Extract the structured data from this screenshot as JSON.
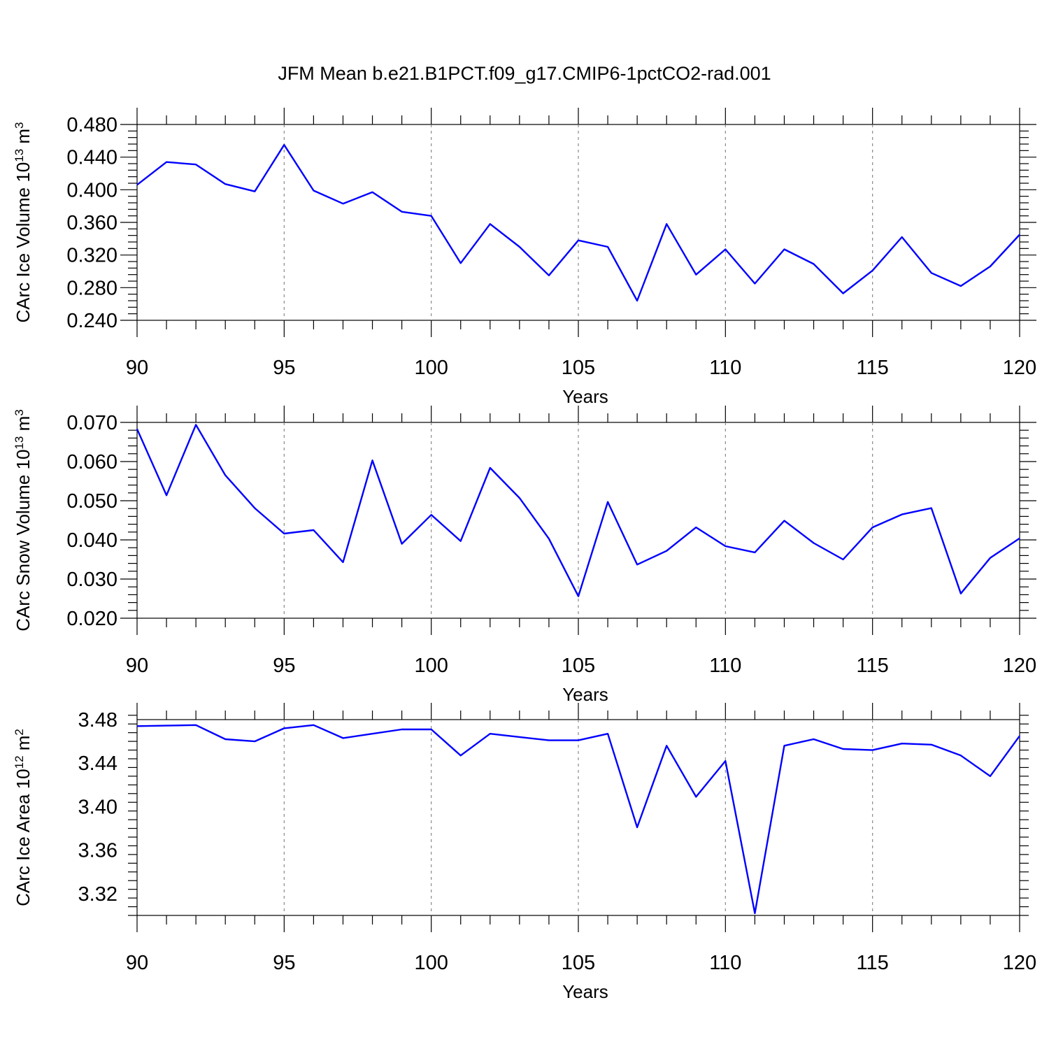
{
  "title": "JFM Mean b.e21.B1PCT.f09_g17.CMIP6-1pctCO2-rad.001",
  "chart_data": [
    {
      "type": "line",
      "ylabel": "CArc Ice Volume 10",
      "ylabel_exp": "13",
      "ylabel_unit": " m",
      "ylabel_unit_exp": "3",
      "xlabel": "Years",
      "xlim": [
        90,
        120
      ],
      "ylim": [
        0.24,
        0.48
      ],
      "x_ticks": [
        "90",
        "95",
        "100",
        "105",
        "110",
        "115",
        "120"
      ],
      "y_ticks": [
        "0.240",
        "0.280",
        "0.320",
        "0.360",
        "0.400",
        "0.440",
        "0.480"
      ],
      "color": "#0000ff",
      "x": [
        90,
        91,
        92,
        93,
        94,
        95,
        96,
        97,
        98,
        99,
        100,
        101,
        102,
        103,
        104,
        105,
        106,
        107,
        108,
        109,
        110,
        111,
        112,
        113,
        114,
        115,
        116,
        117,
        118,
        119,
        120
      ],
      "values": [
        0.406,
        0.434,
        0.431,
        0.407,
        0.398,
        0.455,
        0.399,
        0.383,
        0.397,
        0.373,
        0.368,
        0.31,
        0.358,
        0.33,
        0.295,
        0.338,
        0.33,
        0.264,
        0.358,
        0.296,
        0.327,
        0.285,
        0.327,
        0.309,
        0.273,
        0.301,
        0.342,
        0.298,
        0.282,
        0.306,
        0.345
      ]
    },
    {
      "type": "line",
      "ylabel": "CArc Snow Volume 10",
      "ylabel_exp": "13",
      "ylabel_unit": " m",
      "ylabel_unit_exp": "3",
      "xlabel": "Years",
      "xlim": [
        90,
        120
      ],
      "ylim": [
        0.02,
        0.07
      ],
      "x_ticks": [
        "90",
        "95",
        "100",
        "105",
        "110",
        "115",
        "120"
      ],
      "y_ticks": [
        "0.020",
        "0.030",
        "0.040",
        "0.050",
        "0.060",
        "0.070"
      ],
      "color": "#0000ff",
      "x": [
        90,
        91,
        92,
        93,
        94,
        95,
        96,
        97,
        98,
        99,
        100,
        101,
        102,
        103,
        104,
        105,
        106,
        107,
        108,
        109,
        110,
        111,
        112,
        113,
        114,
        115,
        116,
        117,
        118,
        119,
        120
      ],
      "values": [
        0.0683,
        0.0514,
        0.0694,
        0.0565,
        0.0481,
        0.0416,
        0.0425,
        0.0343,
        0.0603,
        0.039,
        0.0464,
        0.0397,
        0.0584,
        0.0507,
        0.0403,
        0.0256,
        0.0497,
        0.0337,
        0.0372,
        0.0432,
        0.0384,
        0.0368,
        0.0449,
        0.0392,
        0.035,
        0.0432,
        0.0465,
        0.0481,
        0.0263,
        0.0354,
        0.0404
      ]
    },
    {
      "type": "line",
      "ylabel": "CArc Ice Area 10",
      "ylabel_exp": "12",
      "ylabel_unit": " m",
      "ylabel_unit_exp": "2",
      "xlabel": "Years",
      "xlim": [
        90,
        120
      ],
      "ylim": [
        3.3,
        3.48
      ],
      "x_ticks": [
        "90",
        "95",
        "100",
        "105",
        "110",
        "115",
        "120"
      ],
      "y_ticks": [
        "3.32",
        "3.36",
        "3.40",
        "3.44",
        "3.48"
      ],
      "color": "#0000ff",
      "x": [
        90,
        91,
        92,
        93,
        94,
        95,
        96,
        97,
        98,
        99,
        100,
        101,
        102,
        103,
        104,
        105,
        106,
        107,
        108,
        109,
        110,
        111,
        112,
        113,
        114,
        115,
        116,
        117,
        118,
        119,
        120
      ],
      "values": [
        3.474,
        3.4745,
        3.475,
        3.462,
        3.46,
        3.472,
        3.475,
        3.463,
        3.467,
        3.471,
        3.471,
        3.447,
        3.467,
        3.464,
        3.461,
        3.461,
        3.467,
        3.381,
        3.456,
        3.409,
        3.442,
        3.302,
        3.456,
        3.462,
        3.453,
        3.452,
        3.458,
        3.457,
        3.447,
        3.428,
        3.465
      ]
    }
  ]
}
